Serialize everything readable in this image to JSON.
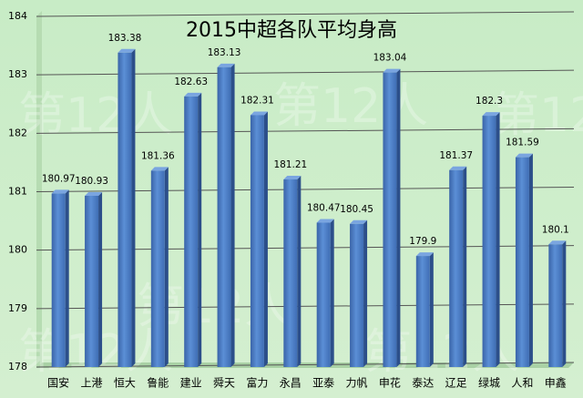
{
  "chart_data": {
    "type": "bar",
    "title": "2015中超各队平均身高",
    "watermark": "第12人",
    "categories": [
      "国安",
      "上港",
      "恒大",
      "鲁能",
      "建业",
      "舜天",
      "富力",
      "永昌",
      "亚泰",
      "力帆",
      "申花",
      "泰达",
      "辽足",
      "绿城",
      "人和",
      "申鑫"
    ],
    "values": [
      180.97,
      180.93,
      183.38,
      181.36,
      182.63,
      183.13,
      182.31,
      181.21,
      180.47,
      180.45,
      183.04,
      179.9,
      181.37,
      182.3,
      181.59,
      180.1
    ],
    "color": "#4a7cc4",
    "ylim": [
      178,
      184
    ],
    "yticks": [
      178,
      179,
      180,
      181,
      182,
      183,
      184
    ],
    "grid": true
  }
}
